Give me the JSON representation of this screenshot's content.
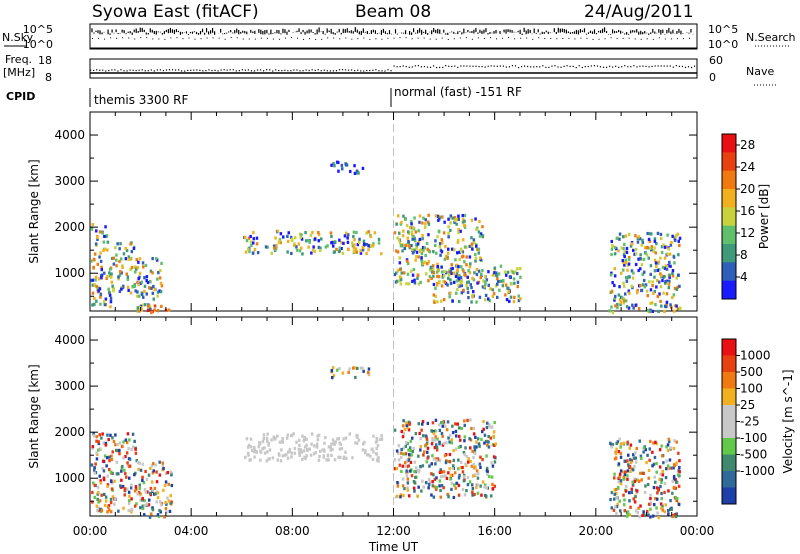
{
  "header": {
    "title_left": "Syowa East (fitACF)",
    "title_center": "Beam 08",
    "title_right": "24/Aug/2011"
  },
  "strip_labels": {
    "nsky": "N.Sky",
    "nsky_tick_top": "10^5",
    "nsky_tick_bottom": "10^0",
    "nsearch": "N.Search",
    "nsearch_tick_top": "10^5",
    "nsearch_tick_bottom": "10^0",
    "freq_line1": "Freq.",
    "freq_line2": "[MHz]",
    "freq_tick_top": "18",
    "freq_tick_bottom": "8",
    "nave": "Nave",
    "nave_tick_top": "60",
    "nave_tick_bottom": "0",
    "cpid": "CPID",
    "mode_left": "themis 3300 RF",
    "mode_right": "normal (fast) -151 RF"
  },
  "colors": {
    "power_scale": [
      "#1a1aff",
      "#2f5fb8",
      "#3f9a7a",
      "#5fbf6a",
      "#c8d23c",
      "#f0b020",
      "#f07a10",
      "#e84010",
      "#e81010"
    ],
    "velocity_scale": [
      "#1f3fa8",
      "#2f6a9a",
      "#3f8a6f",
      "#62c84a",
      "#c8c8c8",
      "#c8c8c8",
      "#f0b020",
      "#f07a10",
      "#e84010",
      "#e81010"
    ],
    "mode_divider": "#c0c0c0"
  },
  "chart_data": [
    {
      "type": "heatmap",
      "title": "",
      "xlabel": "",
      "ylabel": "Slant Range [km]",
      "xlim": [
        "00:00",
        "00:00"
      ],
      "ylim": [
        180,
        4500
      ],
      "x_ticks": [
        "00:00",
        "04:00",
        "08:00",
        "12:00",
        "16:00",
        "20:00",
        "00:00"
      ],
      "y_ticks": [
        1000,
        2000,
        3000,
        4000
      ],
      "colorbar": {
        "label": "Power [dB]",
        "ticks": [
          4,
          8,
          12,
          16,
          20,
          24,
          28
        ],
        "range": [
          0,
          30
        ]
      },
      "echo_regions": [
        {
          "t_start": 0.0,
          "t_end": 0.8,
          "r_min": 300,
          "r_max": 2100,
          "level": "mixed"
        },
        {
          "t_start": 0.8,
          "t_end": 1.8,
          "r_min": 600,
          "r_max": 1700,
          "level": "mixed"
        },
        {
          "t_start": 1.8,
          "t_end": 2.8,
          "r_min": 180,
          "r_max": 1400,
          "level": "mixed"
        },
        {
          "t_start": 2.2,
          "t_end": 3.2,
          "r_min": 180,
          "r_max": 330,
          "level": "high"
        },
        {
          "t_start": 6.0,
          "t_end": 11.5,
          "r_min": 1450,
          "r_max": 1950,
          "level": "mixed"
        },
        {
          "t_start": 9.5,
          "t_end": 11.0,
          "r_min": 3200,
          "r_max": 3450,
          "level": "low"
        },
        {
          "t_start": 12.0,
          "t_end": 15.5,
          "r_min": 800,
          "r_max": 2300,
          "level": "mixed"
        },
        {
          "t_start": 13.5,
          "t_end": 17.0,
          "r_min": 400,
          "r_max": 1200,
          "level": "mixed"
        },
        {
          "t_start": 20.5,
          "t_end": 23.3,
          "r_min": 180,
          "r_max": 1900,
          "level": "mixed"
        }
      ]
    },
    {
      "type": "heatmap",
      "title": "",
      "xlabel": "Time UT",
      "ylabel": "Slant Range [km]",
      "xlim": [
        "00:00",
        "00:00"
      ],
      "ylim": [
        180,
        4500
      ],
      "x_ticks": [
        "00:00",
        "04:00",
        "08:00",
        "12:00",
        "16:00",
        "20:00",
        "00:00"
      ],
      "y_ticks": [
        1000,
        2000,
        3000,
        4000
      ],
      "colorbar": {
        "label": "Velocity [m s^-1]",
        "ticks": [
          1000,
          500,
          100,
          25,
          -25,
          -100,
          -500,
          -1000
        ]
      },
      "echo_regions": [
        {
          "t_start": 0.0,
          "t_end": 1.8,
          "r_min": 300,
          "r_max": 2000,
          "level": "mixed"
        },
        {
          "t_start": 1.8,
          "t_end": 3.2,
          "r_min": 180,
          "r_max": 1400,
          "level": "mixed"
        },
        {
          "t_start": 6.0,
          "t_end": 11.5,
          "r_min": 1400,
          "r_max": 2000,
          "level": "low-speed"
        },
        {
          "t_start": 9.5,
          "t_end": 11.0,
          "r_min": 3200,
          "r_max": 3450,
          "level": "mixed"
        },
        {
          "t_start": 12.0,
          "t_end": 16.0,
          "r_min": 600,
          "r_max": 2300,
          "level": "mixed"
        },
        {
          "t_start": 20.5,
          "t_end": 23.3,
          "r_min": 180,
          "r_max": 1900,
          "level": "mixed"
        }
      ]
    }
  ]
}
